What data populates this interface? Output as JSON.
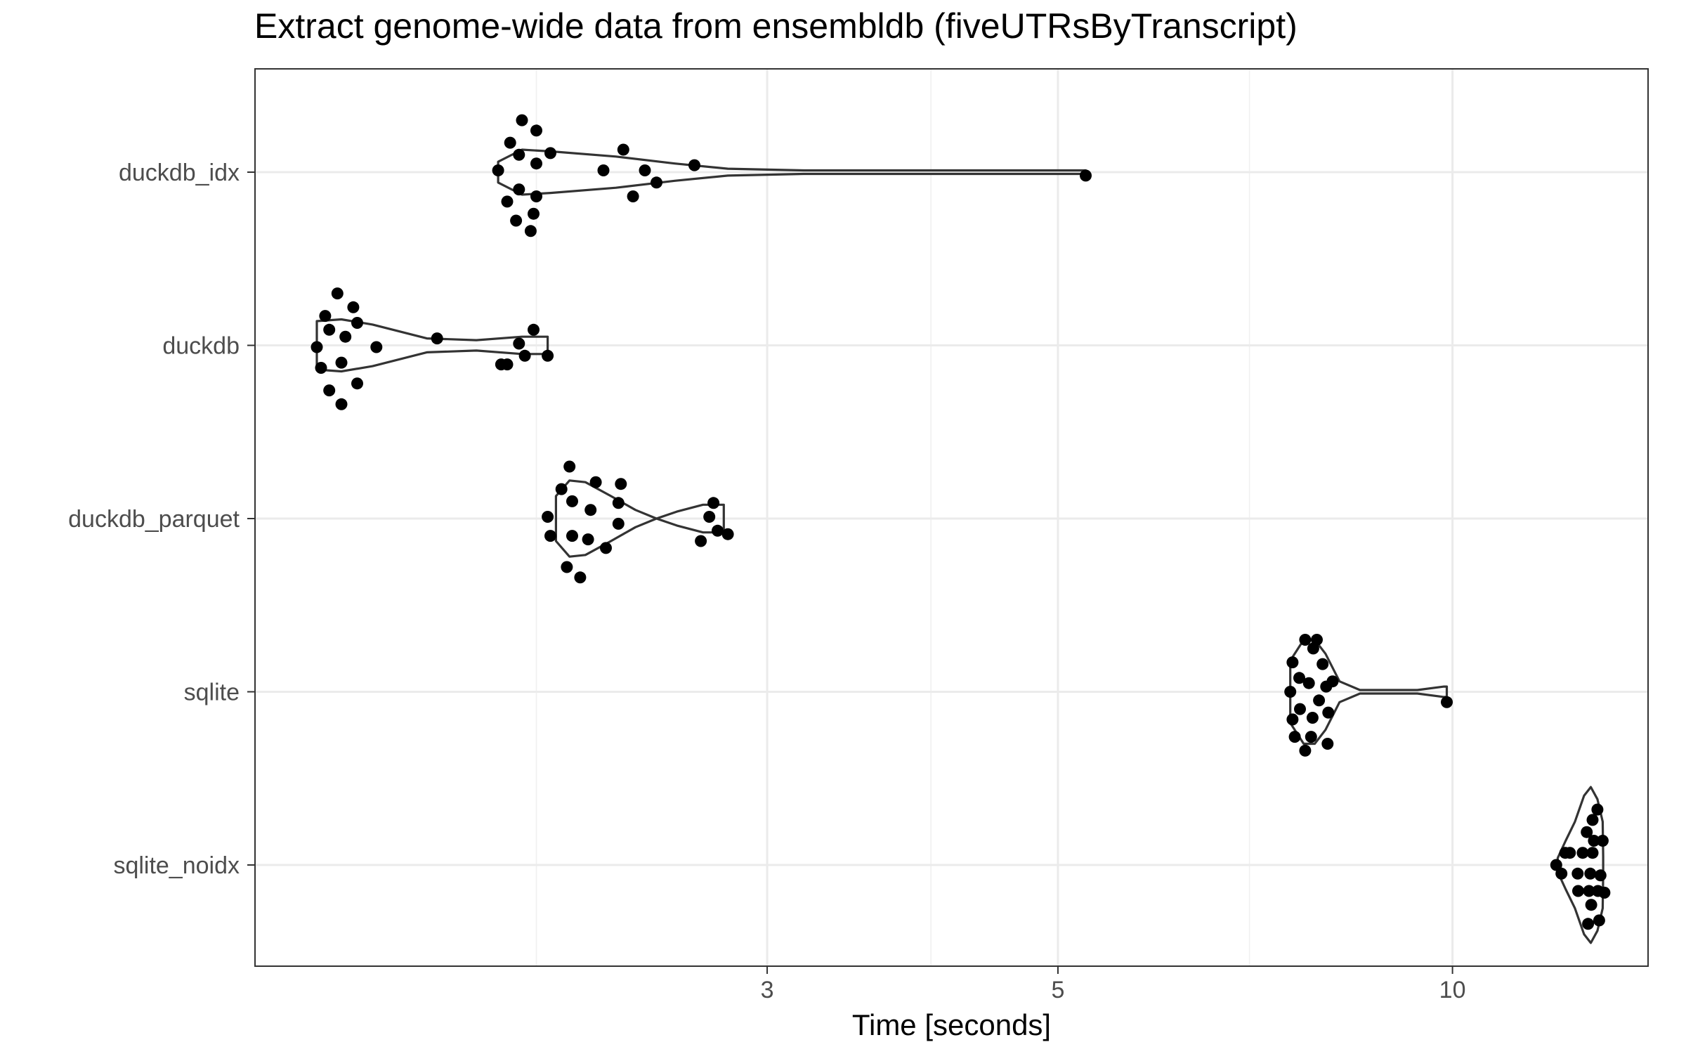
{
  "chart_data": {
    "type": "violin",
    "title": "Extract genome-wide data from ensembldb (fiveUTRsByTranscript)",
    "xlabel": "Time [seconds]",
    "ylabel": "",
    "x_scale": "log10",
    "xlim": [
      1.22,
      14.1
    ],
    "x_major_ticks": [
      3,
      5,
      10
    ],
    "x_minor_ticks": [
      2,
      4,
      7
    ],
    "x_tick_labels": [
      "3",
      "5",
      "10"
    ],
    "categories": [
      "duckdb_idx",
      "duckdb",
      "duckdb_parquet",
      "sqlite",
      "sqlite_noidx"
    ],
    "grid": true,
    "point_color": "#000000",
    "violin_color": "#333333",
    "series": [
      {
        "name": "duckdb_idx",
        "points": [
          [
            1.95,
            0.3
          ],
          [
            2.0,
            0.24
          ],
          [
            1.91,
            0.17
          ],
          [
            1.94,
            0.1
          ],
          [
            2.05,
            0.11
          ],
          [
            2.0,
            0.05
          ],
          [
            1.87,
            0.01
          ],
          [
            2.33,
            0.13
          ],
          [
            2.25,
            0.01
          ],
          [
            2.42,
            0.01
          ],
          [
            2.64,
            0.04
          ],
          [
            2.47,
            -0.06
          ],
          [
            1.94,
            -0.1
          ],
          [
            2.0,
            -0.14
          ],
          [
            1.9,
            -0.17
          ],
          [
            1.93,
            -0.28
          ],
          [
            1.99,
            -0.24
          ],
          [
            1.98,
            -0.34
          ],
          [
            2.37,
            -0.14
          ],
          [
            5.25,
            -0.02
          ]
        ],
        "violin": [
          [
            1.87,
            0.06
          ],
          [
            1.95,
            0.13
          ],
          [
            2.05,
            0.12
          ],
          [
            2.3,
            0.09
          ],
          [
            2.55,
            0.05
          ],
          [
            2.8,
            0.02
          ],
          [
            3.2,
            0.01
          ],
          [
            4.5,
            0.01
          ],
          [
            5.2,
            0.01
          ],
          [
            5.25,
            0.01
          ]
        ]
      },
      {
        "name": "duckdb",
        "points": [
          [
            1.41,
            0.3
          ],
          [
            1.45,
            0.22
          ],
          [
            1.38,
            0.17
          ],
          [
            1.46,
            0.13
          ],
          [
            1.39,
            0.09
          ],
          [
            1.43,
            0.05
          ],
          [
            1.36,
            -0.01
          ],
          [
            1.51,
            -0.01
          ],
          [
            1.68,
            0.04
          ],
          [
            1.99,
            0.09
          ],
          [
            1.94,
            0.01
          ],
          [
            1.96,
            -0.06
          ],
          [
            2.04,
            -0.06
          ],
          [
            1.9,
            -0.11
          ],
          [
            1.42,
            -0.1
          ],
          [
            1.37,
            -0.13
          ],
          [
            1.46,
            -0.22
          ],
          [
            1.39,
            -0.26
          ],
          [
            1.42,
            -0.34
          ],
          [
            1.88,
            -0.11
          ]
        ],
        "violin": [
          [
            1.36,
            0.14
          ],
          [
            1.42,
            0.15
          ],
          [
            1.5,
            0.12
          ],
          [
            1.65,
            0.04
          ],
          [
            1.8,
            0.03
          ],
          [
            1.95,
            0.05
          ],
          [
            2.04,
            0.05
          ]
        ]
      },
      {
        "name": "duckdb_parquet",
        "points": [
          [
            2.12,
            0.3
          ],
          [
            2.22,
            0.21
          ],
          [
            2.09,
            0.17
          ],
          [
            2.32,
            0.2
          ],
          [
            2.13,
            0.1
          ],
          [
            2.31,
            0.09
          ],
          [
            2.2,
            0.05
          ],
          [
            2.04,
            0.01
          ],
          [
            2.31,
            -0.03
          ],
          [
            2.05,
            -0.1
          ],
          [
            2.13,
            -0.1
          ],
          [
            2.19,
            -0.12
          ],
          [
            2.26,
            -0.17
          ],
          [
            2.11,
            -0.28
          ],
          [
            2.16,
            -0.34
          ],
          [
            2.73,
            0.09
          ],
          [
            2.71,
            0.01
          ],
          [
            2.75,
            -0.07
          ],
          [
            2.8,
            -0.09
          ],
          [
            2.67,
            -0.13
          ]
        ],
        "violin": [
          [
            2.07,
            0.13
          ],
          [
            2.12,
            0.22
          ],
          [
            2.18,
            0.21
          ],
          [
            2.28,
            0.13
          ],
          [
            2.38,
            0.05
          ],
          [
            2.47,
            0.0
          ],
          [
            2.56,
            0.04
          ],
          [
            2.68,
            0.08
          ],
          [
            2.78,
            0.08
          ]
        ]
      },
      {
        "name": "sqlite",
        "points": [
          [
            7.72,
            0.3
          ],
          [
            7.88,
            0.3
          ],
          [
            7.83,
            0.25
          ],
          [
            7.55,
            0.17
          ],
          [
            7.96,
            0.16
          ],
          [
            7.64,
            0.08
          ],
          [
            7.77,
            0.05
          ],
          [
            8.1,
            0.06
          ],
          [
            8.01,
            0.03
          ],
          [
            7.52,
            0.0
          ],
          [
            7.91,
            -0.05
          ],
          [
            7.65,
            -0.1
          ],
          [
            7.55,
            -0.16
          ],
          [
            7.82,
            -0.15
          ],
          [
            8.04,
            -0.12
          ],
          [
            7.58,
            -0.26
          ],
          [
            7.8,
            -0.26
          ],
          [
            8.03,
            -0.3
          ],
          [
            7.72,
            -0.34
          ],
          [
            9.9,
            -0.06
          ]
        ],
        "violin": [
          [
            7.52,
            0.18
          ],
          [
            7.7,
            0.3
          ],
          [
            7.85,
            0.3
          ],
          [
            8.0,
            0.22
          ],
          [
            8.2,
            0.06
          ],
          [
            8.5,
            0.01
          ],
          [
            9.4,
            0.01
          ],
          [
            9.85,
            0.03
          ],
          [
            9.9,
            0.03
          ]
        ]
      },
      {
        "name": "sqlite_noidx",
        "points": [
          [
            12.9,
            0.32
          ],
          [
            12.79,
            0.26
          ],
          [
            12.66,
            0.19
          ],
          [
            12.82,
            0.14
          ],
          [
            13.02,
            0.14
          ],
          [
            12.19,
            0.07
          ],
          [
            12.29,
            0.07
          ],
          [
            12.57,
            0.07
          ],
          [
            12.79,
            0.07
          ],
          [
            12.0,
            0.0
          ],
          [
            12.11,
            -0.05
          ],
          [
            12.46,
            -0.05
          ],
          [
            12.74,
            -0.05
          ],
          [
            12.97,
            -0.06
          ],
          [
            12.47,
            -0.15
          ],
          [
            12.71,
            -0.15
          ],
          [
            12.91,
            -0.15
          ],
          [
            13.06,
            -0.16
          ],
          [
            12.76,
            -0.23
          ],
          [
            12.69,
            -0.34
          ],
          [
            12.94,
            -0.32
          ]
        ],
        "violin": [
          [
            12.03,
            0.04
          ],
          [
            12.2,
            0.14
          ],
          [
            12.4,
            0.25
          ],
          [
            12.6,
            0.4
          ],
          [
            12.75,
            0.45
          ],
          [
            12.9,
            0.38
          ],
          [
            13.02,
            0.25
          ],
          [
            13.03,
            0.05
          ]
        ]
      }
    ]
  }
}
